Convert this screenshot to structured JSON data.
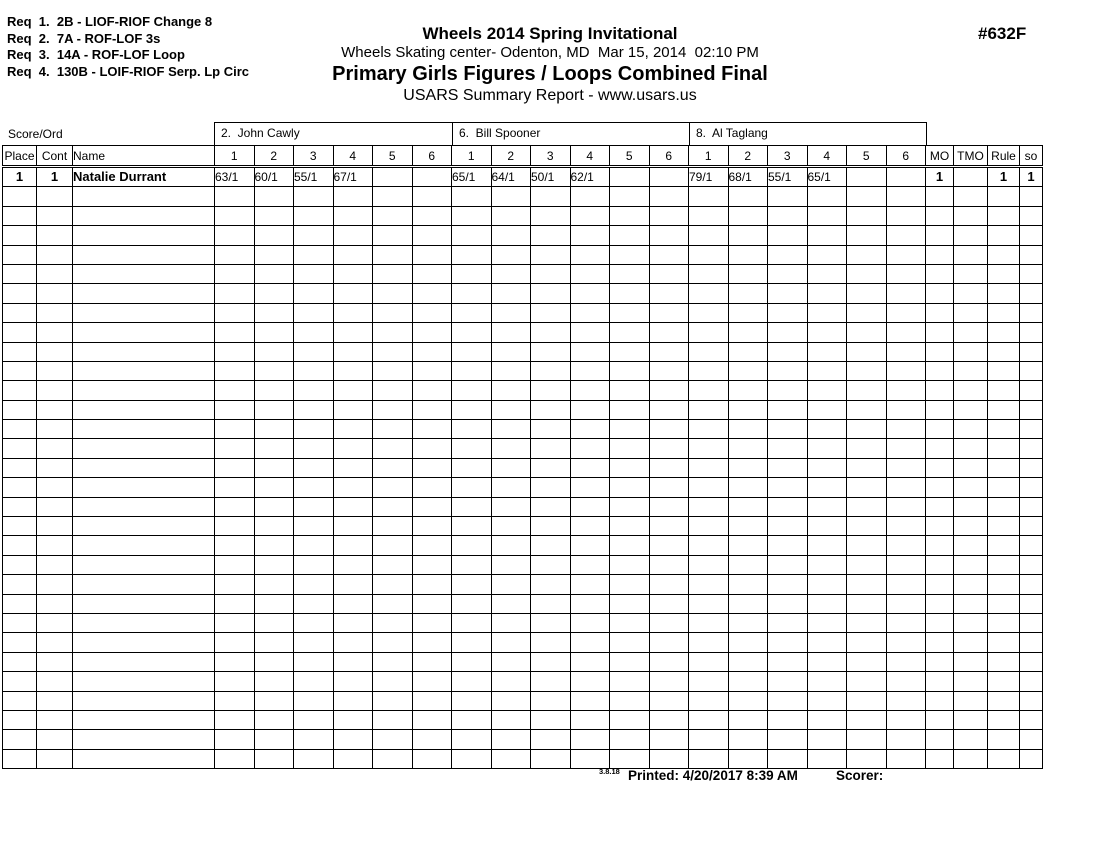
{
  "requirements": [
    "Req  1.  2B - LIOF-RIOF Change 8",
    "Req  2.  7A - ROF-LOF 3s",
    "Req  3.  14A - ROF-LOF Loop",
    "Req  4.  130B - LOIF-RIOF Serp. Lp Circ"
  ],
  "header": {
    "title": "Wheels 2014 Spring Invitational",
    "venue_line": "Wheels Skating center- Odenton, MD  Mar 15, 2014  02:10 PM",
    "event_title": "Primary Girls Figures / Loops Combined Final",
    "report_line": "USARS Summary Report - www.usars.us",
    "event_number": "#632F"
  },
  "table": {
    "corner_label": "Score/Ord",
    "judges": [
      {
        "label": "2.  John Cawly"
      },
      {
        "label": "6.  Bill Spooner"
      },
      {
        "label": "8.  Al Taglang"
      }
    ],
    "columns": {
      "place": "Place",
      "cont": "Cont",
      "name": "Name",
      "score_cols": [
        "1",
        "2",
        "3",
        "4",
        "5",
        "6"
      ],
      "mo": "MO",
      "tmo": "TMO",
      "rule": "Rule",
      "so": "so"
    },
    "rows": [
      {
        "place": "1",
        "cont": "1",
        "name": "Natalie Durrant",
        "scores": [
          "63/1",
          "60/1",
          "55/1",
          "67/1",
          "",
          "",
          "65/1",
          "64/1",
          "50/1",
          "62/1",
          "",
          "",
          "79/1",
          "68/1",
          "55/1",
          "65/1",
          "",
          ""
        ],
        "mo": "1",
        "tmo": "",
        "rule": "1",
        "so": "1"
      }
    ],
    "empty_row_count": 30
  },
  "footer": {
    "version": "3.8.18",
    "printed_label": "Printed:",
    "printed_value": "4/20/2017  8:39 AM",
    "scorer_label": "Scorer:"
  },
  "colors": {
    "ink": "#000000",
    "paper": "#ffffff"
  }
}
